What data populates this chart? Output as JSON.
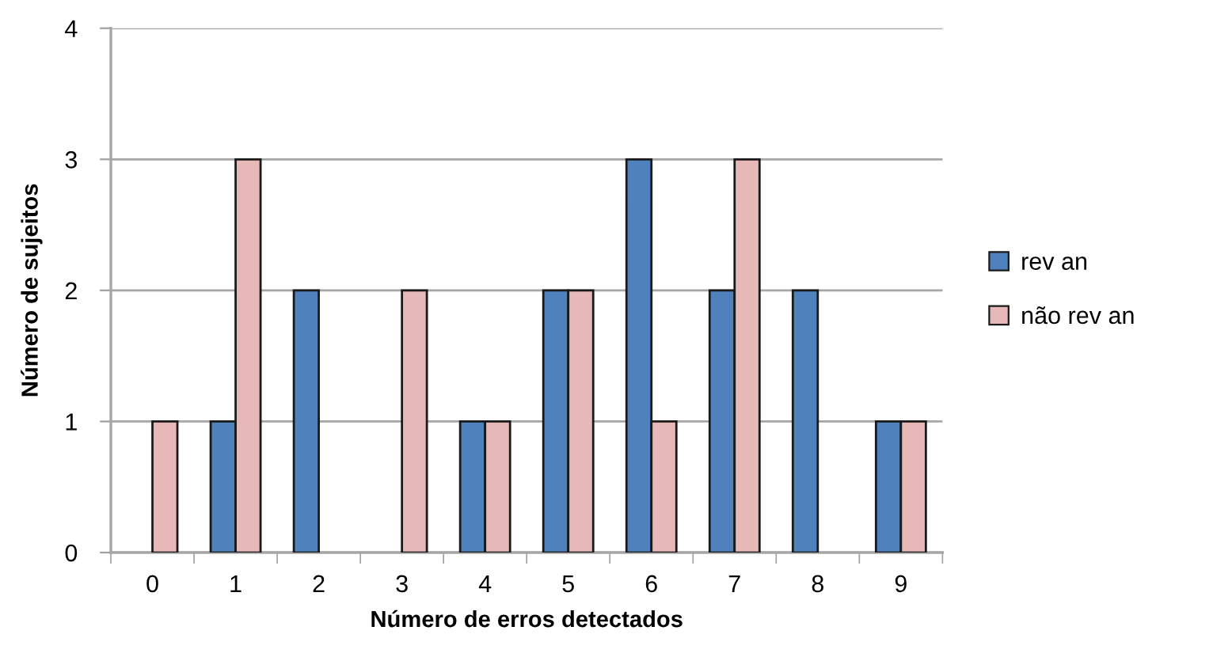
{
  "chart_data": {
    "type": "bar",
    "xlabel": "Número de erros detectados",
    "ylabel": "Número de sujeitos",
    "categories": [
      "0",
      "1",
      "2",
      "3",
      "4",
      "5",
      "6",
      "7",
      "8",
      "9"
    ],
    "series": [
      {
        "name": "rev an",
        "color": "#4f81bd",
        "values": [
          0,
          1,
          2,
          0,
          1,
          2,
          3,
          2,
          2,
          1
        ]
      },
      {
        "name": "não rev an",
        "color": "#e6b9b8",
        "values": [
          1,
          3,
          0,
          2,
          1,
          2,
          1,
          3,
          0,
          1
        ]
      }
    ],
    "ylim": [
      0,
      4
    ],
    "yticks": [
      0,
      1,
      2,
      3,
      4
    ],
    "grid": "y",
    "legend": "right"
  }
}
